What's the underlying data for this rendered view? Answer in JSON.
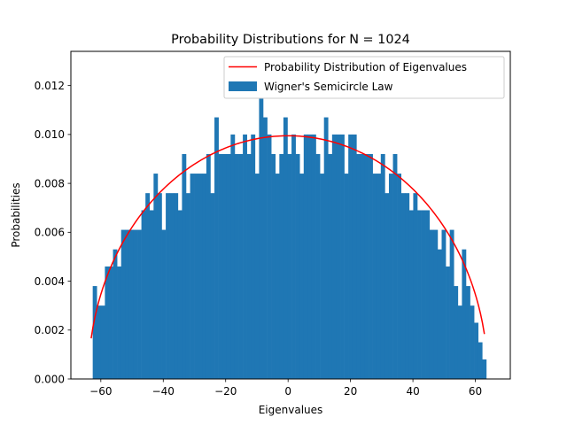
{
  "chart_data": {
    "type": "bar",
    "title": "Probability Distributions for N = 1024",
    "xlabel": "Eigenvalues",
    "ylabel": "Probabilities",
    "xlim": [
      -69.6,
      71.2
    ],
    "ylim": [
      0,
      0.0134
    ],
    "x_ticks": [
      -60,
      -40,
      -20,
      0,
      20,
      40,
      60
    ],
    "x_tick_labels": [
      "−60",
      "−40",
      "−20",
      "0",
      "20",
      "40",
      "60"
    ],
    "y_ticks": [
      0,
      0.002,
      0.004,
      0.006,
      0.008,
      0.01,
      0.012
    ],
    "y_tick_labels": [
      "0.000",
      "0.002",
      "0.004",
      "0.006",
      "0.008",
      "0.010",
      "0.012"
    ],
    "grid": false,
    "legend_position": "top-right",
    "colors": {
      "histogram": "#1f77b4",
      "curve": "#ff0000"
    },
    "series": [
      {
        "name": "Probability Distribution of Eigenvalues",
        "type": "line",
        "radius": 64,
        "x_range": [
          -63.1,
          62.9
        ]
      },
      {
        "name": "Wigner's Semicircle Law",
        "type": "histogram",
        "x_start": -62.6,
        "bin_width": 1.3,
        "values": [
          0.0038,
          0.003,
          0.003,
          0.0046,
          0.0046,
          0.0053,
          0.0046,
          0.0061,
          0.0061,
          0.0061,
          0.0061,
          0.0061,
          0.0069,
          0.0076,
          0.0069,
          0.0084,
          0.0076,
          0.0061,
          0.0076,
          0.0076,
          0.0076,
          0.0069,
          0.0092,
          0.0076,
          0.0084,
          0.0084,
          0.0084,
          0.0084,
          0.0092,
          0.0076,
          0.0107,
          0.0092,
          0.0092,
          0.0092,
          0.01,
          0.0092,
          0.0092,
          0.01,
          0.0092,
          0.01,
          0.0084,
          0.0115,
          0.0107,
          0.01,
          0.0092,
          0.0084,
          0.0092,
          0.0107,
          0.0092,
          0.01,
          0.0092,
          0.0084,
          0.01,
          0.01,
          0.01,
          0.0092,
          0.0084,
          0.0107,
          0.0092,
          0.01,
          0.01,
          0.01,
          0.0084,
          0.01,
          0.01,
          0.0092,
          0.0092,
          0.0092,
          0.0092,
          0.0084,
          0.0084,
          0.0092,
          0.0076,
          0.0084,
          0.0092,
          0.0084,
          0.0076,
          0.0076,
          0.0069,
          0.0076,
          0.0069,
          0.0069,
          0.0069,
          0.0061,
          0.0061,
          0.0053,
          0.0061,
          0.0046,
          0.0061,
          0.0038,
          0.003,
          0.0053,
          0.0038,
          0.003,
          0.0023,
          0.0015,
          0.0008
        ]
      }
    ]
  }
}
